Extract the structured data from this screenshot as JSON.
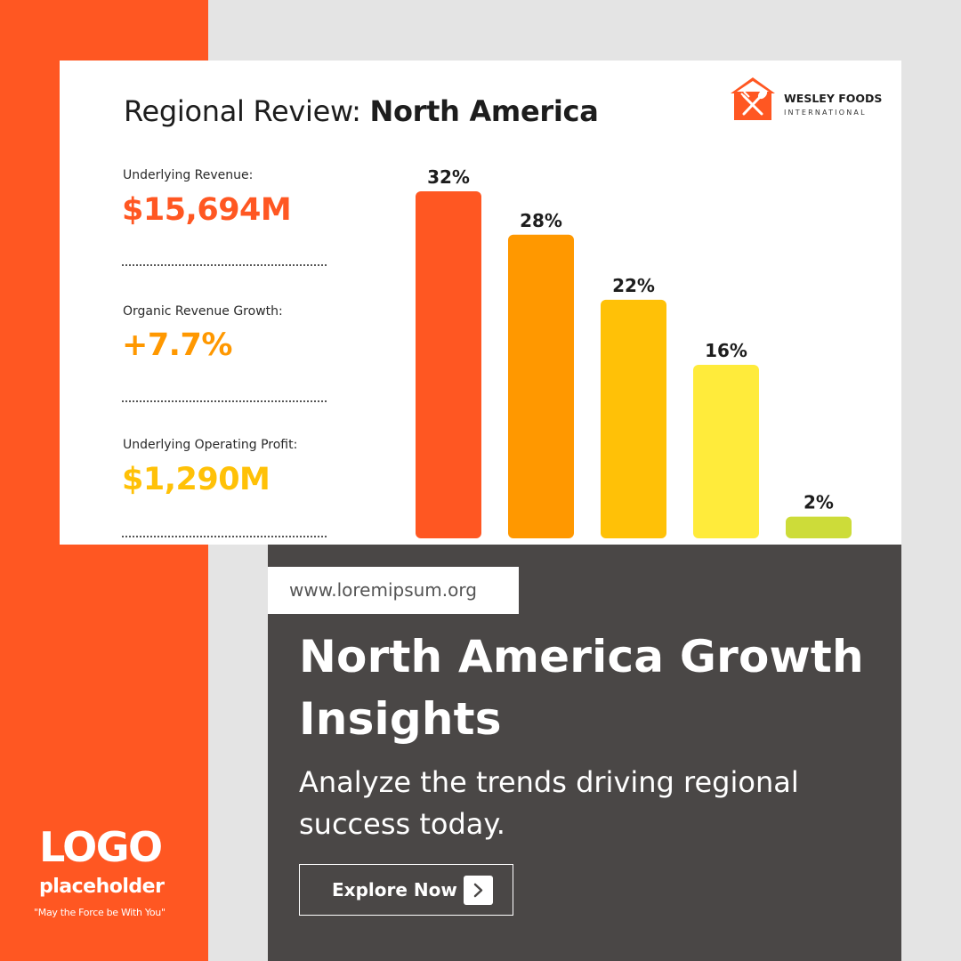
{
  "card": {
    "title_prefix": "Regional Review: ",
    "title_region": "North America",
    "brand": {
      "name": "WESLEY FOODS",
      "sub": "INTERNATIONAL"
    },
    "metrics": [
      {
        "label": "Underlying Revenue:",
        "value": "$15,694M",
        "color": "#ff5722"
      },
      {
        "label": "Organic Revenue Growth:",
        "value": "+7.7%",
        "color": "#ff9800"
      },
      {
        "label": "Underlying Operating Profit:",
        "value": "$1,290M",
        "color": "#ffc107"
      }
    ]
  },
  "chart_data": {
    "type": "bar",
    "values": [
      32,
      28,
      22,
      16,
      2
    ],
    "data_labels": [
      "32%",
      "28%",
      "22%",
      "16%",
      "2%"
    ],
    "colors": [
      "#ff5722",
      "#ff9800",
      "#ffc107",
      "#ffeb3b",
      "#cddc39"
    ],
    "ylim": [
      0,
      32
    ]
  },
  "promo": {
    "url": "www.loremipsum.org",
    "headline": "North America Growth Insights",
    "subline": "Analyze the trends driving regional success today.",
    "cta_label": "Explore Now",
    "cta_icon": "chevron-right-icon"
  },
  "logo": {
    "main": "LOGO",
    "sub": "placeholder",
    "tagline": "\"May the Force be With You\""
  },
  "colors": {
    "accent": "#ff5722",
    "panel": "#4a4746",
    "background": "#e4e4e4"
  }
}
